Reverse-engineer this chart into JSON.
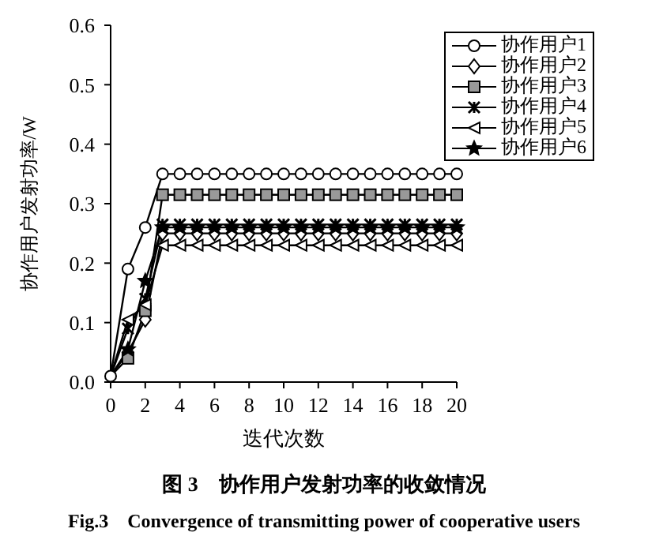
{
  "chart_data": {
    "type": "line",
    "xlabel": "迭代次数",
    "ylabel": "协作用户发射功率/W",
    "x": [
      0,
      1,
      2,
      3,
      4,
      5,
      6,
      7,
      8,
      9,
      10,
      11,
      12,
      13,
      14,
      15,
      16,
      17,
      18,
      19,
      20
    ],
    "series": [
      {
        "name": "协作用户1",
        "color": "#000000",
        "marker": "circle",
        "values": [
          0.01,
          0.19,
          0.26,
          0.35,
          0.35,
          0.35,
          0.35,
          0.35,
          0.35,
          0.35,
          0.35,
          0.35,
          0.35,
          0.35,
          0.35,
          0.35,
          0.35,
          0.35,
          0.35,
          0.35,
          0.35
        ]
      },
      {
        "name": "协作用户2",
        "color": "#000000",
        "marker": "diamond",
        "values": [
          0.01,
          0.05,
          0.105,
          0.25,
          0.25,
          0.25,
          0.25,
          0.25,
          0.25,
          0.25,
          0.25,
          0.25,
          0.25,
          0.25,
          0.25,
          0.25,
          0.25,
          0.25,
          0.25,
          0.25,
          0.25
        ]
      },
      {
        "name": "协作用户3",
        "color": "#000000",
        "marker": "square",
        "values": [
          0.01,
          0.04,
          0.12,
          0.315,
          0.315,
          0.315,
          0.315,
          0.315,
          0.315,
          0.315,
          0.315,
          0.315,
          0.315,
          0.315,
          0.315,
          0.315,
          0.315,
          0.315,
          0.315,
          0.315,
          0.315
        ]
      },
      {
        "name": "协作用户4",
        "color": "#000000",
        "marker": "cross",
        "values": [
          0.01,
          0.09,
          0.14,
          0.265,
          0.265,
          0.265,
          0.265,
          0.265,
          0.265,
          0.265,
          0.265,
          0.265,
          0.265,
          0.265,
          0.265,
          0.265,
          0.265,
          0.265,
          0.265,
          0.265,
          0.265
        ]
      },
      {
        "name": "协作用户5",
        "color": "#000000",
        "marker": "triangle",
        "values": [
          0.01,
          0.105,
          0.13,
          0.23,
          0.23,
          0.23,
          0.23,
          0.23,
          0.23,
          0.23,
          0.23,
          0.23,
          0.23,
          0.23,
          0.23,
          0.23,
          0.23,
          0.23,
          0.23,
          0.23,
          0.23
        ]
      },
      {
        "name": "协作用户6",
        "color": "#000000",
        "marker": "star",
        "values": [
          0.01,
          0.055,
          0.17,
          0.26,
          0.26,
          0.26,
          0.26,
          0.26,
          0.26,
          0.26,
          0.26,
          0.26,
          0.26,
          0.26,
          0.26,
          0.26,
          0.26,
          0.26,
          0.26,
          0.26,
          0.26
        ]
      }
    ],
    "xlim": [
      0,
      20
    ],
    "xticks": [
      0,
      2,
      4,
      6,
      8,
      10,
      12,
      14,
      16,
      18,
      20
    ],
    "ylim": [
      0,
      0.6
    ],
    "yticks": [
      {
        "value": 0,
        "label": "0.0"
      },
      0.1,
      0.2,
      0.3,
      0.4,
      0.5,
      0.6
    ],
    "grid": false,
    "legend": "top right",
    "line_style": "solid",
    "annotations": [
      "图 3　协作用户发射功率的收敛情况",
      "Fig.3　Convergence of transmitting power of cooperative users"
    ]
  }
}
